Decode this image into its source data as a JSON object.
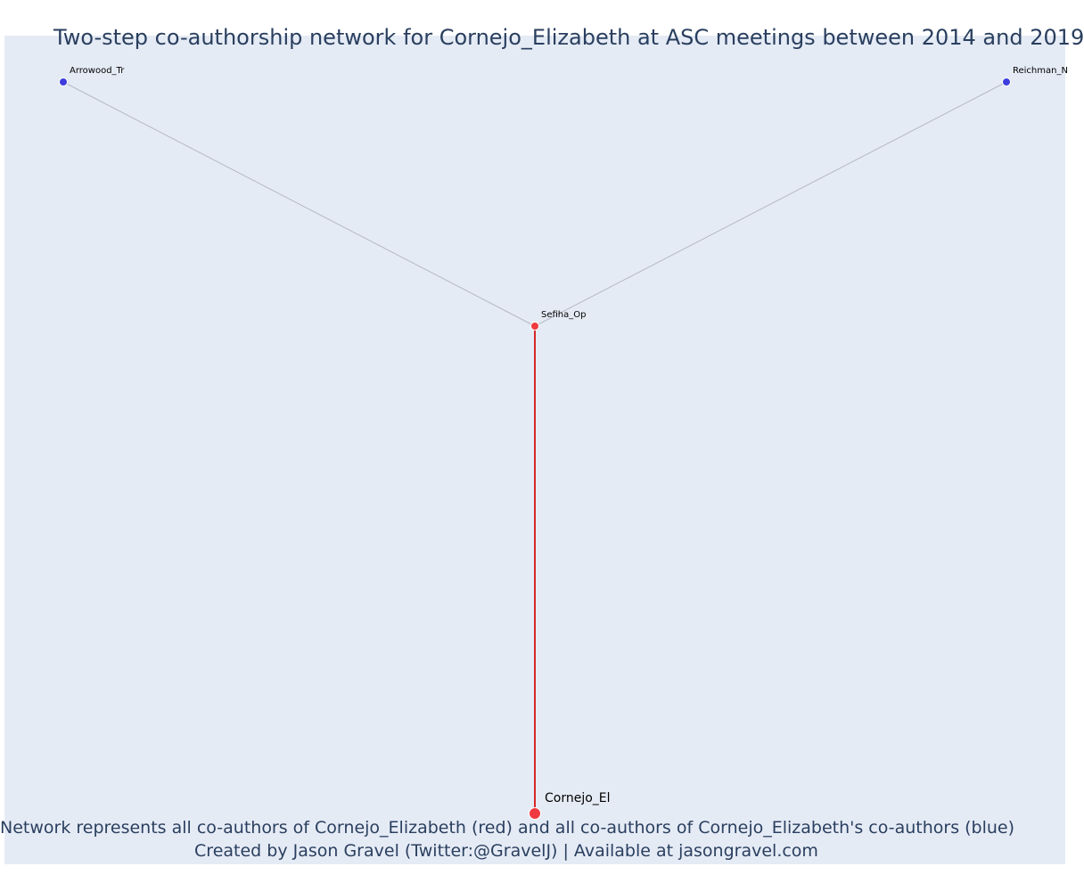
{
  "title": "Two-step co-authorship network for Cornejo_Elizabeth at ASC meetings between 2014 and 2019",
  "caption": {
    "line1": "Network represents all co-authors of Cornejo_Elizabeth (red) and all co-authors of Cornejo_Elizabeth's co-authors (blue)",
    "line2": "Created by Jason Gravel (Twitter:@GravelJ) | Available at jasongravel.com"
  },
  "colors": {
    "background": "#e5ebf5",
    "focal_node": "#ef3a3f",
    "coauthor_node": "#ef3a3f",
    "second_step_node": "#3d3ddf",
    "edge_focal": "#d62728",
    "edge_other": "#b4b8c8",
    "text": "#2a3f5f"
  },
  "network": {
    "nodes": [
      {
        "id": "Cornejo_El",
        "label": "Cornejo_El",
        "role": "focal",
        "color": "#ef3a3f"
      },
      {
        "id": "Sefiha_Op",
        "label": "Sefiha_Op",
        "role": "coauthor",
        "color": "#ef3a3f"
      },
      {
        "id": "Arrowood_Tr",
        "label": "Arrowood_Tr",
        "role": "second-step",
        "color": "#3d3ddf"
      },
      {
        "id": "Reichman_N",
        "label": "Reichman_N",
        "role": "second-step",
        "color": "#3d3ddf"
      }
    ],
    "edges": [
      {
        "source": "Cornejo_El",
        "target": "Sefiha_Op",
        "type": "focal"
      },
      {
        "source": "Sefiha_Op",
        "target": "Arrowood_Tr",
        "type": "other"
      },
      {
        "source": "Sefiha_Op",
        "target": "Reichman_N",
        "type": "other"
      }
    ]
  }
}
